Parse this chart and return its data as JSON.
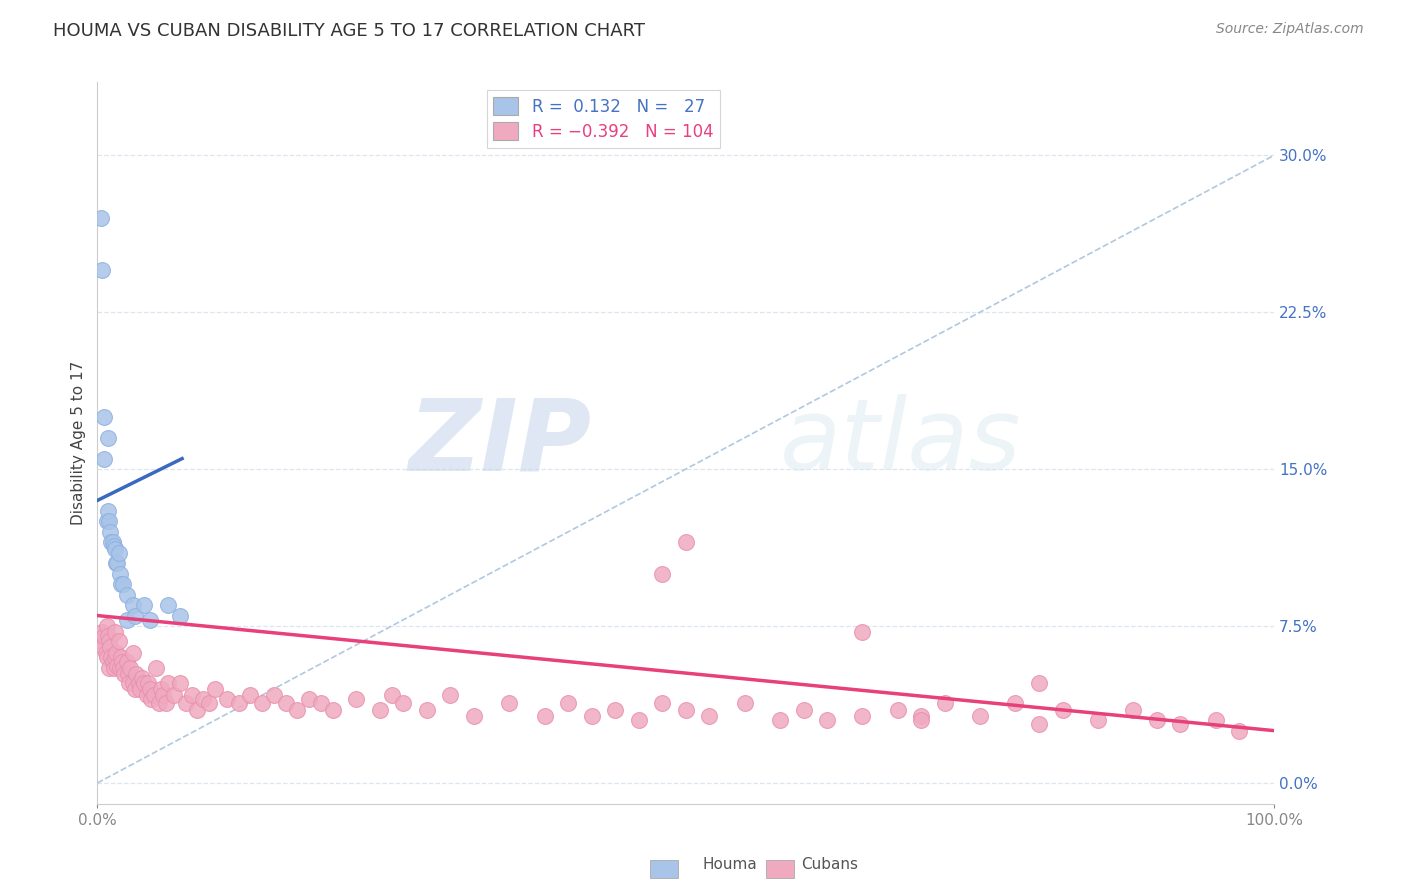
{
  "title": "HOUMA VS CUBAN DISABILITY AGE 5 TO 17 CORRELATION CHART",
  "source": "Source: ZipAtlas.com",
  "ylabel": "Disability Age 5 to 17",
  "xlim": [
    0.0,
    1.0
  ],
  "ylim": [
    -0.01,
    0.335
  ],
  "ytick_values": [
    0.0,
    0.075,
    0.15,
    0.225,
    0.3
  ],
  "ytick_labels_right": [
    "0.0%",
    "7.5%",
    "15.0%",
    "22.5%",
    "30.0%"
  ],
  "houma_r": 0.132,
  "houma_n": 27,
  "cuban_r": -0.392,
  "cuban_n": 104,
  "houma_color": "#a8c4e8",
  "cuban_color": "#f0aac0",
  "houma_line_color": "#3a6abf",
  "cuban_line_color": "#e8407a",
  "dashed_line_color": "#b0c8e0",
  "grid_color": "#dde6f0",
  "background_color": "#ffffff",
  "watermark_zip": "ZIP",
  "watermark_atlas": "atlas",
  "houma_x": [
    0.003,
    0.004,
    0.006,
    0.006,
    0.008,
    0.009,
    0.009,
    0.01,
    0.011,
    0.012,
    0.013,
    0.014,
    0.015,
    0.016,
    0.017,
    0.018,
    0.019,
    0.02,
    0.022,
    0.025,
    0.025,
    0.03,
    0.032,
    0.04,
    0.045,
    0.06,
    0.07
  ],
  "houma_y": [
    0.27,
    0.245,
    0.175,
    0.155,
    0.125,
    0.165,
    0.13,
    0.125,
    0.12,
    0.115,
    0.115,
    0.113,
    0.112,
    0.105,
    0.105,
    0.11,
    0.1,
    0.095,
    0.095,
    0.09,
    0.078,
    0.085,
    0.08,
    0.085,
    0.078,
    0.085,
    0.08
  ],
  "cuban_x": [
    0.003,
    0.004,
    0.005,
    0.006,
    0.007,
    0.008,
    0.008,
    0.009,
    0.01,
    0.01,
    0.011,
    0.012,
    0.013,
    0.014,
    0.015,
    0.015,
    0.016,
    0.017,
    0.018,
    0.019,
    0.02,
    0.021,
    0.022,
    0.023,
    0.025,
    0.026,
    0.027,
    0.028,
    0.03,
    0.03,
    0.032,
    0.033,
    0.035,
    0.036,
    0.038,
    0.04,
    0.042,
    0.043,
    0.045,
    0.046,
    0.048,
    0.05,
    0.052,
    0.054,
    0.056,
    0.058,
    0.06,
    0.065,
    0.07,
    0.075,
    0.08,
    0.085,
    0.09,
    0.095,
    0.1,
    0.11,
    0.12,
    0.13,
    0.14,
    0.15,
    0.16,
    0.17,
    0.18,
    0.19,
    0.2,
    0.22,
    0.24,
    0.25,
    0.26,
    0.28,
    0.3,
    0.32,
    0.35,
    0.38,
    0.4,
    0.42,
    0.44,
    0.46,
    0.48,
    0.5,
    0.52,
    0.55,
    0.58,
    0.6,
    0.62,
    0.65,
    0.68,
    0.7,
    0.72,
    0.75,
    0.78,
    0.8,
    0.82,
    0.85,
    0.88,
    0.9,
    0.92,
    0.95,
    0.97,
    0.5,
    0.48,
    0.65,
    0.7,
    0.8
  ],
  "cuban_y": [
    0.068,
    0.072,
    0.065,
    0.07,
    0.062,
    0.075,
    0.06,
    0.07,
    0.068,
    0.055,
    0.065,
    0.06,
    0.058,
    0.055,
    0.072,
    0.06,
    0.062,
    0.056,
    0.068,
    0.055,
    0.06,
    0.058,
    0.055,
    0.052,
    0.058,
    0.052,
    0.048,
    0.055,
    0.062,
    0.048,
    0.045,
    0.052,
    0.048,
    0.045,
    0.05,
    0.048,
    0.042,
    0.048,
    0.045,
    0.04,
    0.042,
    0.055,
    0.038,
    0.045,
    0.042,
    0.038,
    0.048,
    0.042,
    0.048,
    0.038,
    0.042,
    0.035,
    0.04,
    0.038,
    0.045,
    0.04,
    0.038,
    0.042,
    0.038,
    0.042,
    0.038,
    0.035,
    0.04,
    0.038,
    0.035,
    0.04,
    0.035,
    0.042,
    0.038,
    0.035,
    0.042,
    0.032,
    0.038,
    0.032,
    0.038,
    0.032,
    0.035,
    0.03,
    0.038,
    0.035,
    0.032,
    0.038,
    0.03,
    0.035,
    0.03,
    0.032,
    0.035,
    0.032,
    0.038,
    0.032,
    0.038,
    0.028,
    0.035,
    0.03,
    0.035,
    0.03,
    0.028,
    0.03,
    0.025,
    0.115,
    0.1,
    0.072,
    0.03,
    0.048
  ],
  "houma_line_x": [
    0.0,
    0.072
  ],
  "houma_line_y": [
    0.135,
    0.155
  ],
  "cuban_line_x": [
    0.0,
    1.0
  ],
  "cuban_line_y": [
    0.08,
    0.025
  ],
  "diag_line_x": [
    0.0,
    1.0
  ],
  "diag_line_y": [
    0.0,
    0.3
  ]
}
